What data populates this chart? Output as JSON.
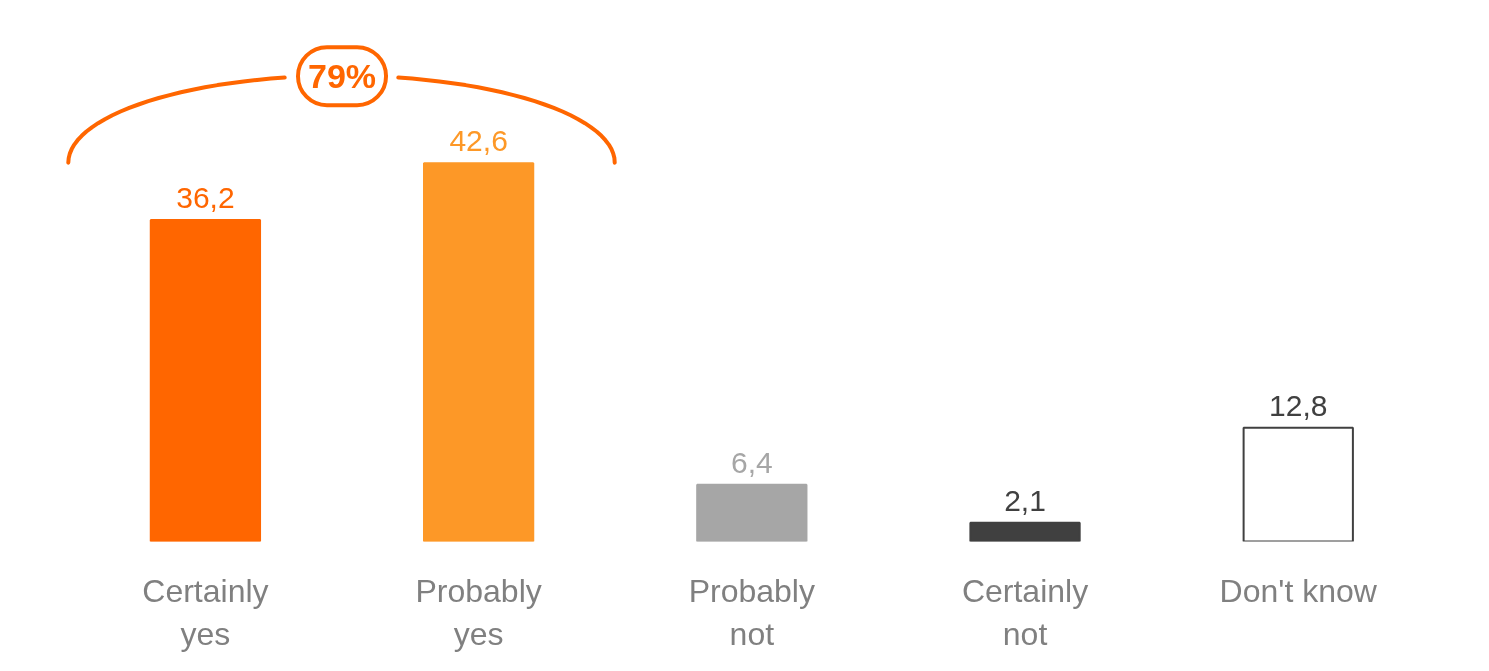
{
  "chart_data": {
    "type": "bar",
    "categories": [
      "Certainly yes",
      "Probably yes",
      "Probably not",
      "Certainly not",
      "Don't know"
    ],
    "values": [
      36.2,
      42.6,
      6.4,
      2.1,
      12.8
    ],
    "colors": [
      "#ff6600",
      "#fd9827",
      "#a6a6a6",
      "#404040",
      "#ffffff"
    ],
    "value_labels": [
      "36,2",
      "42,6",
      "6,4",
      "2,1",
      "12,8"
    ],
    "annotations": [
      "79%"
    ],
    "grid": false
  }
}
